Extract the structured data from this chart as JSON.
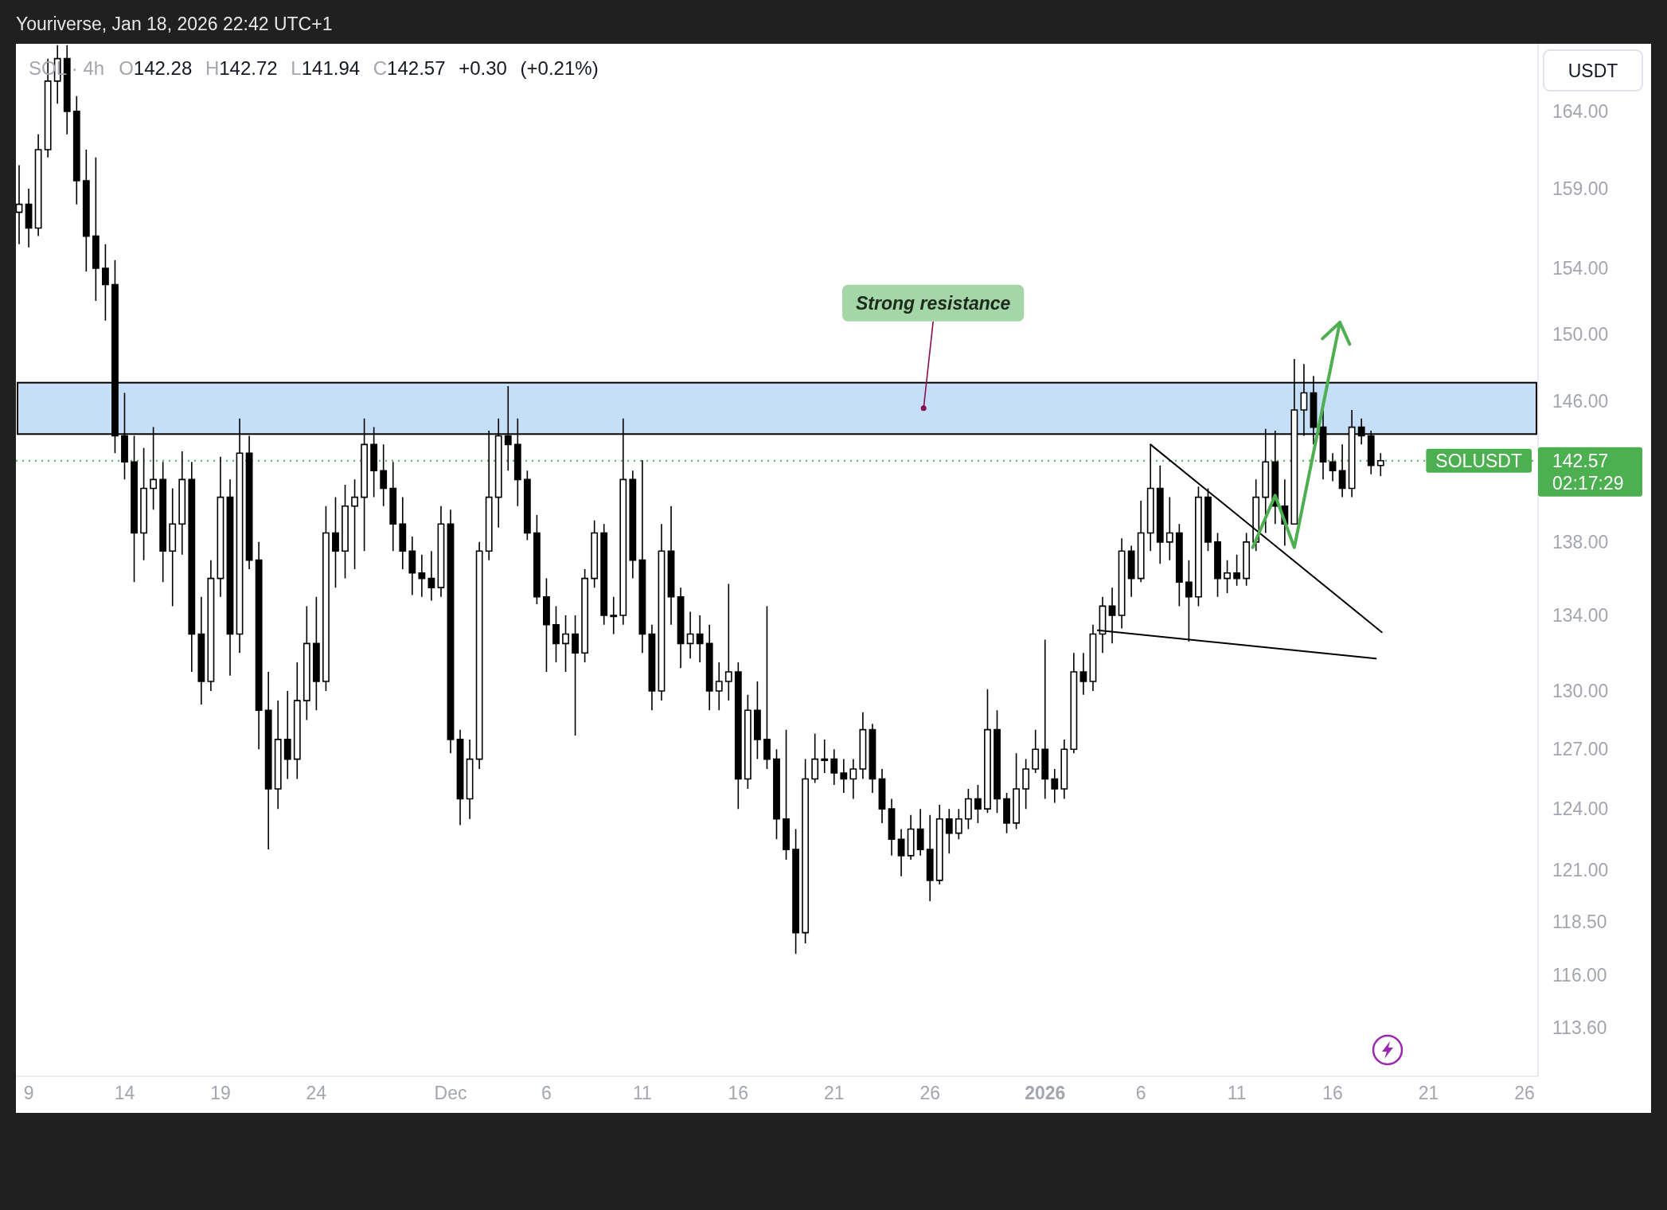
{
  "chart_data": {
    "type": "candlestick",
    "title": "SOL · 4h",
    "ylabel": "USDT",
    "color": "#000000",
    "log": true,
    "xlim": [
      "2025-11-08T08:00",
      "2026-01-26T17:00"
    ],
    "xticks": [
      {
        "value": "2025-11-09",
        "label": "9"
      },
      {
        "value": "2025-11-14",
        "label": "14"
      },
      {
        "value": "2025-11-19",
        "label": "19"
      },
      {
        "value": "2025-11-24",
        "label": "24"
      },
      {
        "value": "2025-12-01",
        "label": "Dec"
      },
      {
        "value": "2025-12-06",
        "label": "6"
      },
      {
        "value": "2025-12-11",
        "label": "11"
      },
      {
        "value": "2025-12-16",
        "label": "16"
      },
      {
        "value": "2025-12-21",
        "label": "21"
      },
      {
        "value": "2025-12-26",
        "label": "26"
      },
      {
        "value": "2026-01-01",
        "label": "2026"
      },
      {
        "value": "2026-01-06",
        "label": "6"
      },
      {
        "value": "2026-01-11",
        "label": "11"
      },
      {
        "value": "2026-01-16",
        "label": "16"
      },
      {
        "value": "2026-01-21",
        "label": "21"
      },
      {
        "value": "2026-01-26",
        "label": "26"
      }
    ],
    "ylim": [
      111.4,
      168.5
    ],
    "yticks": [
      {
        "value": 164,
        "label": "164.00"
      },
      {
        "value": 159,
        "label": "159.00"
      },
      {
        "value": 154,
        "label": "154.00"
      },
      {
        "value": 150,
        "label": "150.00"
      },
      {
        "value": 146,
        "label": "146.00"
      },
      {
        "value": 138,
        "label": "138.00"
      },
      {
        "value": 134,
        "label": "134.00"
      },
      {
        "value": 130,
        "label": "130.00"
      },
      {
        "value": 127,
        "label": "127.00"
      },
      {
        "value": 124,
        "label": "124.00"
      },
      {
        "value": 121,
        "label": "121.00"
      },
      {
        "value": 118.5,
        "label": "118.50"
      },
      {
        "value": 116,
        "label": "116.00"
      },
      {
        "value": 113.6,
        "label": "113.60"
      }
    ],
    "x": [
      "2025-11-08T12:00",
      "2025-11-09T00:00",
      "2025-11-09T12:00",
      "2025-11-10T00:00",
      "2025-11-10T12:00",
      "2025-11-11T00:00",
      "2025-11-11T12:00",
      "2025-11-12T00:00",
      "2025-11-12T12:00",
      "2025-11-13T00:00",
      "2025-11-13T12:00",
      "2025-11-14T00:00",
      "2025-11-14T12:00",
      "2025-11-15T00:00",
      "2025-11-15T12:00",
      "2025-11-16T00:00",
      "2025-11-16T12:00",
      "2025-11-17T00:00",
      "2025-11-17T12:00",
      "2025-11-18T00:00",
      "2025-11-18T12:00",
      "2025-11-19T00:00",
      "2025-11-19T12:00",
      "2025-11-20T00:00",
      "2025-11-20T12:00",
      "2025-11-21T00:00",
      "2025-11-21T12:00",
      "2025-11-22T00:00",
      "2025-11-22T12:00",
      "2025-11-23T00:00",
      "2025-11-23T12:00",
      "2025-11-24T00:00",
      "2025-11-24T12:00",
      "2025-11-25T00:00",
      "2025-11-25T12:00",
      "2025-11-26T00:00",
      "2025-11-26T12:00",
      "2025-11-27T00:00",
      "2025-11-27T12:00",
      "2025-11-28T00:00",
      "2025-11-28T12:00",
      "2025-11-29T00:00",
      "2025-11-29T12:00",
      "2025-11-30T00:00",
      "2025-11-30T12:00",
      "2025-12-01T00:00",
      "2025-12-01T12:00",
      "2025-12-02T00:00",
      "2025-12-02T12:00",
      "2025-12-03T00:00",
      "2025-12-03T12:00",
      "2025-12-04T00:00",
      "2025-12-04T12:00",
      "2025-12-05T00:00",
      "2025-12-05T12:00",
      "2025-12-06T00:00",
      "2025-12-06T12:00",
      "2025-12-07T00:00",
      "2025-12-07T12:00",
      "2025-12-08T00:00",
      "2025-12-08T12:00",
      "2025-12-09T00:00",
      "2025-12-09T12:00",
      "2025-12-10T00:00",
      "2025-12-10T12:00",
      "2025-12-11T00:00",
      "2025-12-11T12:00",
      "2025-12-12T00:00",
      "2025-12-12T12:00",
      "2025-12-13T00:00",
      "2025-12-13T12:00",
      "2025-12-14T00:00",
      "2025-12-14T12:00",
      "2025-12-15T00:00",
      "2025-12-15T12:00",
      "2025-12-16T00:00",
      "2025-12-16T12:00",
      "2025-12-17T00:00",
      "2025-12-17T12:00",
      "2025-12-18T00:00",
      "2025-12-18T12:00",
      "2025-12-19T00:00",
      "2025-12-19T12:00",
      "2025-12-20T00:00",
      "2025-12-20T12:00",
      "2025-12-21T00:00",
      "2025-12-21T12:00",
      "2025-12-22T00:00",
      "2025-12-22T12:00",
      "2025-12-23T00:00",
      "2025-12-23T12:00",
      "2025-12-24T00:00",
      "2025-12-24T12:00",
      "2025-12-25T00:00",
      "2025-12-25T12:00",
      "2025-12-26T00:00",
      "2025-12-26T12:00",
      "2025-12-27T00:00",
      "2025-12-27T12:00",
      "2025-12-28T00:00",
      "2025-12-28T12:00",
      "2025-12-29T00:00",
      "2025-12-29T12:00",
      "2025-12-30T00:00",
      "2025-12-30T12:00",
      "2025-12-31T00:00",
      "2025-12-31T12:00",
      "2026-01-01T00:00",
      "2026-01-01T12:00",
      "2026-01-02T00:00",
      "2026-01-02T12:00",
      "2026-01-03T00:00",
      "2026-01-03T12:00",
      "2026-01-04T00:00",
      "2026-01-04T12:00",
      "2026-01-05T00:00",
      "2026-01-05T12:00",
      "2026-01-06T00:00",
      "2026-01-06T12:00",
      "2026-01-07T00:00",
      "2026-01-07T12:00",
      "2026-01-08T00:00",
      "2026-01-08T12:00",
      "2026-01-09T00:00",
      "2026-01-09T12:00",
      "2026-01-10T00:00",
      "2026-01-10T12:00",
      "2026-01-11T00:00",
      "2026-01-11T12:00",
      "2026-01-12T00:00",
      "2026-01-12T12:00",
      "2026-01-13T00:00",
      "2026-01-13T12:00",
      "2026-01-14T00:00",
      "2026-01-14T12:00",
      "2026-01-15T00:00",
      "2026-01-15T12:00",
      "2026-01-16T00:00",
      "2026-01-16T12:00",
      "2026-01-17T00:00",
      "2026-01-17T12:00",
      "2026-01-18T00:00",
      "2026-01-18T12:00"
    ],
    "ohlc": [
      [
        157.5,
        160.5,
        155.5,
        158
      ],
      [
        158,
        159,
        155.3,
        156.5
      ],
      [
        156.5,
        162.5,
        156,
        161.5
      ],
      [
        161.5,
        167.5,
        161,
        166
      ],
      [
        166,
        168.4,
        164.5,
        167.5
      ],
      [
        167.5,
        168.4,
        162.5,
        164
      ],
      [
        164,
        165,
        158,
        159.5
      ],
      [
        159.5,
        161.5,
        153.8,
        156
      ],
      [
        156,
        161,
        152,
        154
      ],
      [
        154,
        155.5,
        150.8,
        153
      ],
      [
        153,
        154.5,
        143,
        144
      ],
      [
        144,
        146.5,
        141.5,
        142.5
      ],
      [
        142.5,
        144,
        135.8,
        138.5
      ],
      [
        138.5,
        143.3,
        137,
        141
      ],
      [
        141,
        144.5,
        139.8,
        141.5
      ],
      [
        141.5,
        142.5,
        135.8,
        137.5
      ],
      [
        137.5,
        141,
        134.5,
        139
      ],
      [
        139,
        143.1,
        137.3,
        141.5
      ],
      [
        141.5,
        142.5,
        131,
        133
      ],
      [
        133,
        135,
        129.3,
        130.5
      ],
      [
        130.5,
        137,
        130,
        136
      ],
      [
        136,
        142.8,
        135,
        140.5
      ],
      [
        140.5,
        141.5,
        130.8,
        133
      ],
      [
        133,
        145,
        132,
        143
      ],
      [
        143,
        144,
        136.5,
        137
      ],
      [
        137,
        138,
        127,
        129
      ],
      [
        129,
        131,
        122,
        125
      ],
      [
        125,
        129.5,
        124,
        127.5
      ],
      [
        127.5,
        130,
        125.5,
        126.5
      ],
      [
        126.5,
        131.5,
        125.5,
        129.5
      ],
      [
        129.5,
        134.5,
        128.5,
        132.5
      ],
      [
        132.5,
        135,
        129,
        130.5
      ],
      [
        130.5,
        140,
        130,
        138.5
      ],
      [
        138.5,
        140.5,
        135.5,
        137.5
      ],
      [
        137.5,
        141.2,
        136,
        140
      ],
      [
        140,
        141.5,
        136.5,
        140.5
      ],
      [
        140.5,
        145,
        137.5,
        143.5
      ],
      [
        143.5,
        144.5,
        140.5,
        142
      ],
      [
        142,
        143.5,
        140,
        141
      ],
      [
        141,
        142.5,
        137.5,
        139
      ],
      [
        139,
        140.5,
        136.5,
        137.5
      ],
      [
        137.5,
        138.3,
        135.1,
        136.3
      ],
      [
        136.3,
        137.3,
        135,
        136
      ],
      [
        136,
        137.5,
        134.8,
        135.5
      ],
      [
        135.5,
        140,
        135,
        139
      ],
      [
        139,
        139.8,
        126.8,
        127.5
      ],
      [
        127.5,
        128,
        123.2,
        124.5
      ],
      [
        124.5,
        127.5,
        123.5,
        126.5
      ],
      [
        126.5,
        138,
        126,
        137.5
      ],
      [
        137.5,
        144.3,
        137,
        140.5
      ],
      [
        140.5,
        145,
        138.8,
        144
      ],
      [
        144,
        146.9,
        142,
        143.5
      ],
      [
        143.5,
        145,
        140,
        141.5
      ],
      [
        141.5,
        142,
        138.1,
        138.5
      ],
      [
        138.5,
        139.5,
        134.6,
        135
      ],
      [
        135,
        136,
        131,
        133.5
      ],
      [
        133.5,
        134.5,
        131.5,
        132.5
      ],
      [
        132.5,
        134,
        131,
        133
      ],
      [
        133,
        134,
        127.7,
        132
      ],
      [
        132,
        136.5,
        131.5,
        136
      ],
      [
        136,
        139.2,
        135.5,
        138.5
      ],
      [
        138.5,
        139,
        133.5,
        134
      ],
      [
        134,
        135,
        133,
        134
      ],
      [
        134,
        145,
        133.5,
        141.5
      ],
      [
        141.5,
        142,
        136,
        137
      ],
      [
        137,
        142.6,
        132,
        133
      ],
      [
        133,
        133.5,
        129,
        130
      ],
      [
        130,
        139,
        129.5,
        137.5
      ],
      [
        137.5,
        140,
        133.5,
        135
      ],
      [
        135,
        135.5,
        131.2,
        132.5
      ],
      [
        132.5,
        134.2,
        131.7,
        133
      ],
      [
        133,
        134,
        131.5,
        132.5
      ],
      [
        132.5,
        133.5,
        129,
        130
      ],
      [
        130,
        131.5,
        129,
        130.5
      ],
      [
        130.5,
        135.7,
        129.5,
        131
      ],
      [
        131,
        131.5,
        124,
        125.5
      ],
      [
        125.5,
        129.8,
        125,
        129
      ],
      [
        129,
        130.5,
        126.5,
        127.5
      ],
      [
        127.5,
        134.5,
        126,
        126.5
      ],
      [
        126.5,
        127,
        122.5,
        123.5
      ],
      [
        123.5,
        128,
        121.5,
        122
      ],
      [
        122,
        123,
        117,
        118
      ],
      [
        118,
        126.5,
        117.5,
        125.5
      ],
      [
        125.5,
        127.8,
        125.3,
        126.5
      ],
      [
        126.5,
        127.5,
        125.8,
        126.5
      ],
      [
        126.5,
        127,
        125.2,
        125.8
      ],
      [
        125.8,
        126.5,
        124.8,
        125.5
      ],
      [
        125.5,
        126.5,
        124.5,
        126
      ],
      [
        126,
        128.9,
        125.5,
        128
      ],
      [
        128,
        128.3,
        124.8,
        125.5
      ],
      [
        125.5,
        126,
        123.3,
        124
      ],
      [
        124,
        124.5,
        121.7,
        122.5
      ],
      [
        122.5,
        123,
        120.7,
        121.7
      ],
      [
        121.7,
        123.7,
        121.5,
        123
      ],
      [
        123,
        124,
        121.7,
        122
      ],
      [
        122,
        123.7,
        119.5,
        120.5
      ],
      [
        120.5,
        124.2,
        120.3,
        123.5
      ],
      [
        123.5,
        124,
        121.8,
        122.8
      ],
      [
        122.8,
        124,
        122.5,
        123.5
      ],
      [
        123.5,
        125,
        123,
        124.5
      ],
      [
        124.5,
        125.2,
        123.3,
        124
      ],
      [
        124,
        130.1,
        123.8,
        128
      ],
      [
        128,
        129,
        123.8,
        124.5
      ],
      [
        124.5,
        124.8,
        122.8,
        123.3
      ],
      [
        123.3,
        126.8,
        123,
        125
      ],
      [
        125,
        126.5,
        124,
        126
      ],
      [
        126,
        128,
        125.8,
        127
      ],
      [
        127,
        132.7,
        124.5,
        125.5
      ],
      [
        125.5,
        126,
        124.3,
        125
      ],
      [
        125,
        127.5,
        124.5,
        127
      ],
      [
        127,
        132,
        126.8,
        131
      ],
      [
        131,
        132,
        129.8,
        130.5
      ],
      [
        130.5,
        133.5,
        130,
        133
      ],
      [
        133,
        135,
        132,
        134.5
      ],
      [
        134.5,
        135.5,
        132.5,
        134
      ],
      [
        134,
        138.2,
        133.3,
        137.5
      ],
      [
        137.5,
        137.8,
        135,
        136
      ],
      [
        136,
        140.3,
        135.8,
        138.5
      ],
      [
        138.5,
        143.5,
        137.5,
        141
      ],
      [
        141,
        142.3,
        136.8,
        138
      ],
      [
        138,
        140.5,
        137,
        138.5
      ],
      [
        138.5,
        139,
        134.5,
        135.8
      ],
      [
        135.8,
        137,
        132.6,
        135
      ],
      [
        135,
        141.1,
        134.5,
        140.5
      ],
      [
        140.5,
        141,
        137.5,
        138
      ],
      [
        138,
        138.5,
        135,
        136
      ],
      [
        136,
        137,
        135.2,
        136.3
      ],
      [
        136.3,
        137.3,
        135.6,
        136
      ],
      [
        136,
        138.5,
        135.6,
        138
      ],
      [
        138,
        141.5,
        137.5,
        140.5
      ],
      [
        140.5,
        144.4,
        138.5,
        142.5
      ],
      [
        142.5,
        144.3,
        139,
        140
      ],
      [
        140,
        141.5,
        137.8,
        139
      ],
      [
        139,
        148.5,
        139,
        145.5
      ],
      [
        145.5,
        148.2,
        144,
        146.5
      ],
      [
        146.5,
        147.5,
        143.5,
        144.5
      ],
      [
        144.5,
        145.5,
        141.5,
        142.5
      ],
      [
        142.5,
        143,
        141.4,
        142
      ],
      [
        142,
        143.5,
        140.5,
        141
      ],
      [
        141,
        145.5,
        140.5,
        144.5
      ],
      [
        144.5,
        145,
        143.5,
        144
      ],
      [
        144,
        144.3,
        141.8,
        142.3
      ],
      [
        142.3,
        143,
        141.7,
        142.57
      ]
    ],
    "series": [
      {
        "type": "line",
        "x": [
          "2026-01-06T12:00",
          "2026-01-18T13:30"
        ],
        "values": [
          143.5,
          133.1
        ],
        "color": "#000000"
      },
      {
        "type": "line",
        "x": [
          "2026-01-03T18:00",
          "2026-01-18T06:00"
        ],
        "values": [
          133.2,
          131.7
        ],
        "color": "#000000"
      },
      {
        "type": "line",
        "x": [
          "2026-01-11T20:00",
          "2026-01-13T00:00",
          "2026-01-14T00:00",
          "2026-01-16T09:00"
        ],
        "values": [
          137.7,
          140.6,
          137.7,
          150.7
        ],
        "color": "#4caf50"
      }
    ],
    "bands": [
      {
        "axis": "y",
        "from": 144.1,
        "to": 147.1,
        "color": "#c5dff9"
      }
    ],
    "ref_lines": [
      {
        "axis": "y",
        "value": 142.57,
        "label": "SOLUSDT",
        "color": "#4caf50",
        "line_style": "dotted"
      }
    ],
    "annotations": [
      {
        "text": "Strong resistance",
        "x": "2025-12-25T16:00",
        "y": 145.6
      },
      "Youriverse, Jan 18, 2026 22:42 UTC+1",
      "O142.28 H142.72 L141.94 C142.57 +0.30 (+0.21%)",
      "142.57",
      "02:17:29"
    ]
  }
}
